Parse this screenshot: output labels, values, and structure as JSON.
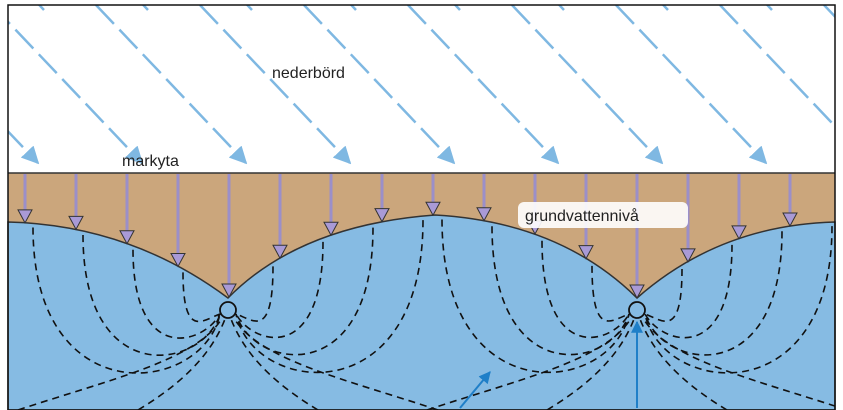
{
  "labels": {
    "precipitation": "nederbörd",
    "ground_surface": "markyta",
    "water_table": "grundvattennivå"
  }
}
